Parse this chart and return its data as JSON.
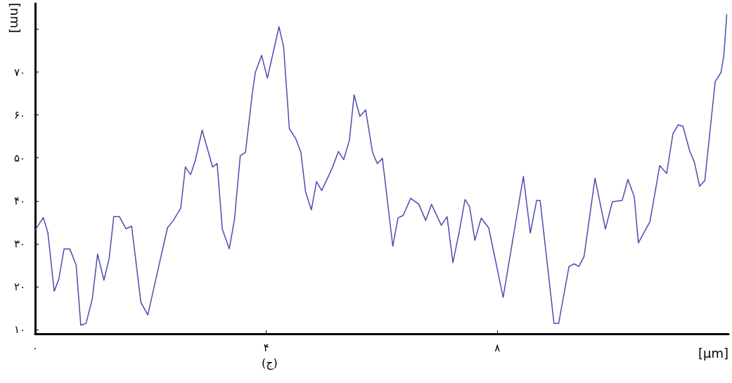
{
  "chart_data": {
    "type": "line",
    "xlabel": "[μm]",
    "ylabel": "[nm]",
    "annotations": [
      "(ج)"
    ],
    "xlim": [
      0,
      12
    ],
    "xticks": [
      {
        "value": 0,
        "label": "۰"
      },
      {
        "value": 4,
        "label": "۴"
      },
      {
        "value": 8,
        "label": "۸"
      }
    ],
    "ylim": [
      9,
      86
    ],
    "yticks": [
      {
        "value": 10,
        "label": "۱۰"
      },
      {
        "value": 20,
        "label": "۲۰"
      },
      {
        "value": 30,
        "label": "۳۰"
      },
      {
        "value": 40,
        "label": "۴۰"
      },
      {
        "value": 50,
        "label": "۵۰"
      },
      {
        "value": 60,
        "label": "۶۰"
      },
      {
        "value": 70,
        "label": "۷۰"
      },
      {
        "value": 80,
        "label": null
      }
    ],
    "grid": false,
    "marker": "none",
    "line_style": "solid",
    "series": [
      {
        "color": "#4b4bb0",
        "x": [
          0,
          0.14,
          0.22,
          0.33,
          0.41,
          0.5,
          0.6,
          0.71,
          0.79,
          0.88,
          0.99,
          1.08,
          1.19,
          1.28,
          1.36,
          1.46,
          1.57,
          1.67,
          1.83,
          1.95,
          2.09,
          2.29,
          2.39,
          2.52,
          2.6,
          2.69,
          2.77,
          2.89,
          3.07,
          3.15,
          3.24,
          3.36,
          3.45,
          3.55,
          3.64,
          3.76,
          3.81,
          3.92,
          4.02,
          4.22,
          4.3,
          4.4,
          4.51,
          4.6,
          4.68,
          4.78,
          4.87,
          4.96,
          5.14,
          5.25,
          5.34,
          5.44,
          5.52,
          5.62,
          5.72,
          5.84,
          5.92,
          6.01,
          6.19,
          6.28,
          6.37,
          6.5,
          6.64,
          6.76,
          6.86,
          7.03,
          7.13,
          7.23,
          7.34,
          7.44,
          7.52,
          7.61,
          7.72,
          7.85,
          8.1,
          8.45,
          8.57,
          8.68,
          8.74,
          8.98,
          9.06,
          9.24,
          9.33,
          9.41,
          9.5,
          9.69,
          9.87,
          9.99,
          10.16,
          10.26,
          10.37,
          10.44,
          10.64,
          10.81,
          10.93,
          11.04,
          11.13,
          11.21,
          11.33,
          11.41,
          11.5,
          11.59,
          11.77,
          11.87,
          11.92,
          11.97
        ],
        "values": [
          33.2,
          36.1,
          32.6,
          18.9,
          21.8,
          28.8,
          28.8,
          25,
          11,
          11.4,
          17.2,
          27.6,
          21.5,
          26.5,
          36.3,
          36.3,
          33.5,
          34.1,
          16.3,
          13.4,
          21.8,
          33.7,
          35.4,
          38.3,
          47.9,
          46.1,
          49.3,
          56.5,
          47.9,
          48.7,
          33.4,
          28.8,
          35.7,
          50.5,
          51.3,
          65.2,
          69.9,
          73.9,
          68.6,
          80.6,
          75.9,
          56.8,
          54.5,
          51.3,
          42.1,
          37.9,
          44.5,
          42.4,
          47.6,
          51.5,
          49.6,
          54.2,
          64.7,
          59.7,
          61.2,
          51.3,
          48.7,
          49.9,
          29.4,
          36,
          36.6,
          40.6,
          39.2,
          35.4,
          39.2,
          34.3,
          36.3,
          25.6,
          32.8,
          40.3,
          38.6,
          30.8,
          36,
          33.7,
          17.5,
          45.7,
          32.5,
          40.1,
          40.1,
          11.4,
          11.4,
          24.7,
          25.3,
          24.7,
          27,
          45.3,
          33.4,
          39.8,
          40.1,
          45,
          40.9,
          30.2,
          35.1,
          48.2,
          46.4,
          55.7,
          57.7,
          57.4,
          51.6,
          49,
          43.4,
          44.7,
          67.8,
          69.9,
          73.9,
          83.5
        ]
      }
    ]
  }
}
